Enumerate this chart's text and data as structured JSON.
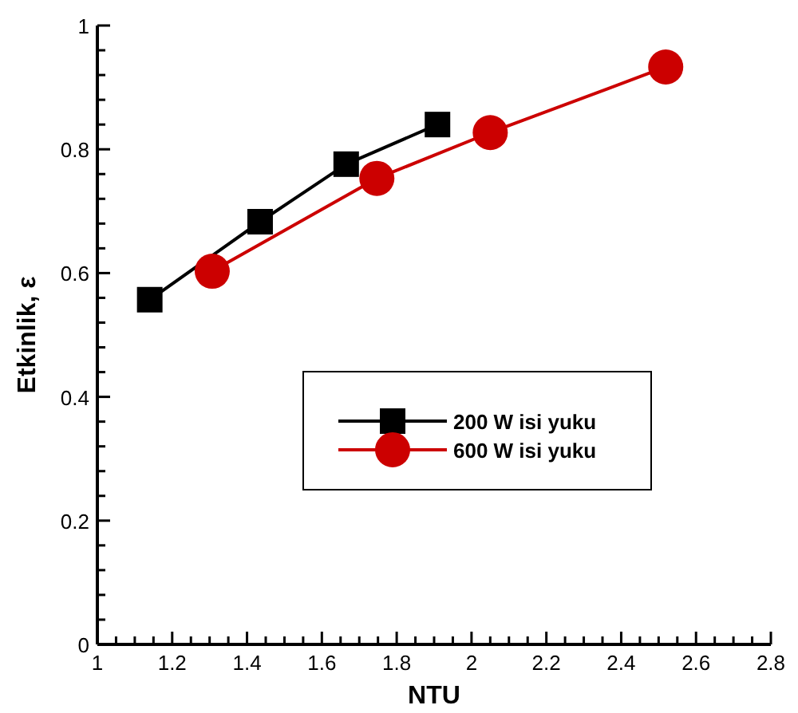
{
  "chart_data": {
    "type": "line",
    "xlabel": "NTU",
    "ylabel": "Etkinlik, ε",
    "xlim": [
      1,
      2.8
    ],
    "ylim": [
      0,
      1
    ],
    "xticks": [
      1,
      {
        "value": 1.05,
        "label": null
      },
      {
        "value": 1.1,
        "label": null
      },
      {
        "value": 1.15,
        "label": null
      },
      1.2,
      {
        "value": 1.25,
        "label": null
      },
      {
        "value": 1.3,
        "label": null
      },
      {
        "value": 1.35,
        "label": null
      },
      1.4,
      {
        "value": 1.45,
        "label": null
      },
      {
        "value": 1.5,
        "label": null
      },
      {
        "value": 1.55,
        "label": null
      },
      1.6,
      {
        "value": 1.65,
        "label": null
      },
      {
        "value": 1.7,
        "label": null
      },
      {
        "value": 1.75,
        "label": null
      },
      1.8,
      {
        "value": 1.85,
        "label": null
      },
      {
        "value": 1.9,
        "label": null
      },
      {
        "value": 1.95,
        "label": null
      },
      2,
      {
        "value": 2.05,
        "label": null
      },
      {
        "value": 2.1,
        "label": null
      },
      {
        "value": 2.15,
        "label": null
      },
      2.2,
      {
        "value": 2.25,
        "label": null
      },
      {
        "value": 2.3,
        "label": null
      },
      {
        "value": 2.35,
        "label": null
      },
      2.4,
      {
        "value": 2.45,
        "label": null
      },
      {
        "value": 2.5,
        "label": null
      },
      {
        "value": 2.55,
        "label": null
      },
      2.6,
      {
        "value": 2.65,
        "label": null
      },
      {
        "value": 2.7,
        "label": null
      },
      {
        "value": 2.75,
        "label": null
      },
      2.8
    ],
    "yticks": [
      0,
      {
        "value": 0.04,
        "label": null
      },
      {
        "value": 0.08,
        "label": null
      },
      {
        "value": 0.12,
        "label": null
      },
      {
        "value": 0.16,
        "label": null
      },
      0.2,
      {
        "value": 0.24,
        "label": null
      },
      {
        "value": 0.28,
        "label": null
      },
      {
        "value": 0.32,
        "label": null
      },
      {
        "value": 0.36,
        "label": null
      },
      0.4,
      {
        "value": 0.44,
        "label": null
      },
      {
        "value": 0.48,
        "label": null
      },
      {
        "value": 0.52,
        "label": null
      },
      {
        "value": 0.56,
        "label": null
      },
      0.6,
      {
        "value": 0.64,
        "label": null
      },
      {
        "value": 0.68,
        "label": null
      },
      {
        "value": 0.72,
        "label": null
      },
      {
        "value": 0.76,
        "label": null
      },
      0.8,
      {
        "value": 0.84,
        "label": null
      },
      {
        "value": 0.88,
        "label": null
      },
      {
        "value": 0.92,
        "label": null
      },
      {
        "value": 0.96,
        "label": null
      },
      1
    ],
    "grid": false,
    "legend": "center",
    "line_style": "solid",
    "series": [
      {
        "name": "200 W isi yuku",
        "color": "#000000",
        "marker": "square",
        "x": [
          1.14,
          1.435,
          1.665,
          1.909
        ],
        "values": [
          0.557,
          0.683,
          0.776,
          0.84
        ]
      },
      {
        "name": "600 W isi yuku",
        "color": "#cc0000",
        "marker": "circle",
        "x": [
          1.307,
          1.747,
          2.05,
          2.519
        ],
        "values": [
          0.603,
          0.753,
          0.827,
          0.933
        ]
      }
    ]
  }
}
